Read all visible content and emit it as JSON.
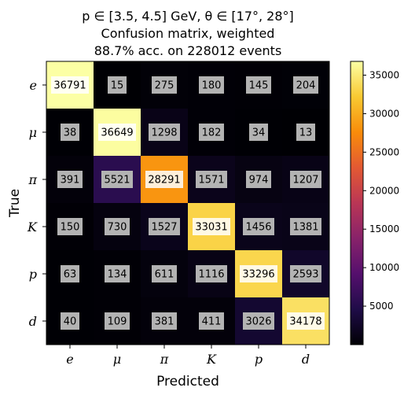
{
  "chart_data": {
    "type": "heatmap",
    "title_lines": [
      "p ∈ [3.5, 4.5] GeV, θ ∈ [17°, 28°]",
      "Confusion matrix, weighted",
      "88.7% acc. on 228012 events"
    ],
    "xlabel": "Predicted",
    "ylabel": "True",
    "x_categories": [
      "e",
      "μ",
      "π",
      "K",
      "p",
      "d"
    ],
    "y_categories": [
      "e",
      "μ",
      "π",
      "K",
      "p",
      "d"
    ],
    "matrix": [
      [
        36791,
        15,
        275,
        180,
        145,
        204
      ],
      [
        38,
        36649,
        1298,
        182,
        34,
        13
      ],
      [
        391,
        5521,
        28291,
        1571,
        974,
        1207
      ],
      [
        150,
        730,
        1527,
        33031,
        1456,
        1381
      ],
      [
        63,
        134,
        611,
        1116,
        33296,
        2593
      ],
      [
        40,
        109,
        381,
        411,
        3026,
        34178
      ]
    ],
    "colormap": "inferno",
    "colorbar": {
      "min": 0,
      "max": 36791,
      "ticks": [
        5000,
        10000,
        15000,
        20000,
        25000,
        30000,
        35000
      ]
    },
    "grid": false
  }
}
